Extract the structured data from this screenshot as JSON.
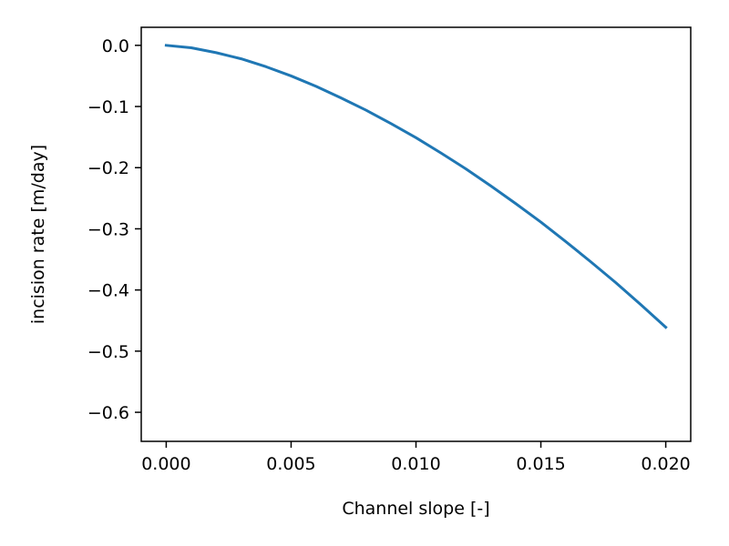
{
  "chart_data": {
    "type": "line",
    "title": "",
    "xlabel": "Channel slope [-]",
    "ylabel": "incision rate [m/day]",
    "xlim": [
      -0.001,
      0.021
    ],
    "ylim": [
      -0.6475,
      0.0295
    ],
    "x_ticks": [
      {
        "value": 0.0,
        "label": "0.000"
      },
      {
        "value": 0.005,
        "label": "0.005"
      },
      {
        "value": 0.01,
        "label": "0.010"
      },
      {
        "value": 0.015,
        "label": "0.015"
      },
      {
        "value": 0.02,
        "label": "0.020"
      }
    ],
    "y_ticks": [
      {
        "value": 0.0,
        "label": "0.0"
      },
      {
        "value": -0.1,
        "label": "−0.1"
      },
      {
        "value": -0.2,
        "label": "−0.2"
      },
      {
        "value": -0.3,
        "label": "−0.3"
      },
      {
        "value": -0.4,
        "label": "−0.4"
      },
      {
        "value": -0.5,
        "label": "−0.5"
      },
      {
        "value": -0.6,
        "label": "−0.6"
      }
    ],
    "grid": false,
    "legend": "none",
    "series": [
      {
        "color": "#1f77b4",
        "x": [
          0.0,
          0.001,
          0.002,
          0.003,
          0.004,
          0.005,
          0.006,
          0.007,
          0.008,
          0.009,
          0.01,
          0.011,
          0.012,
          0.013,
          0.014,
          0.015,
          0.016,
          0.017,
          0.018,
          0.019,
          0.02
        ],
        "y": [
          0.0,
          -0.004,
          -0.012,
          -0.022,
          -0.035,
          -0.05,
          -0.067,
          -0.086,
          -0.106,
          -0.128,
          -0.151,
          -0.176,
          -0.202,
          -0.23,
          -0.259,
          -0.289,
          -0.321,
          -0.354,
          -0.388,
          -0.424,
          -0.461
        ]
      }
    ]
  }
}
